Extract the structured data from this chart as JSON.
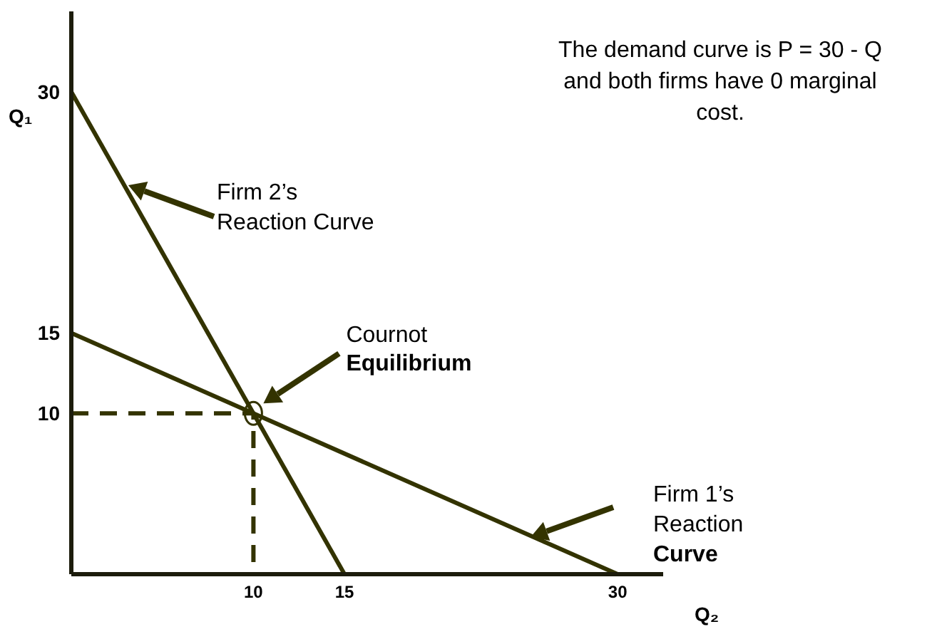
{
  "chart_data": {
    "type": "line",
    "xlabel": "Q₂",
    "ylabel": "Q₁",
    "xlim": [
      0,
      32.5
    ],
    "ylim": [
      0,
      35
    ],
    "xticks": [
      10,
      15,
      30
    ],
    "yticks": [
      10,
      15,
      30
    ],
    "marker": "none",
    "series": [
      {
        "color": "#333300",
        "x": [
          0,
          15
        ],
        "values": [
          30,
          0
        ],
        "line_style": "solid"
      },
      {
        "color": "#333300",
        "x": [
          0,
          30
        ],
        "values": [
          15,
          0
        ],
        "line_style": "solid"
      },
      {
        "color": "#333300",
        "x": [
          0,
          10,
          10
        ],
        "values": [
          10,
          10,
          0
        ],
        "line_style": "dashed"
      }
    ],
    "annotations": [
      "Firm 2’s Reaction Curve",
      "Firm 1’s Reaction Curve",
      "Cournot Equilibrium",
      "The demand curve is P = 30 - Q and both firms have 0 marginal cost."
    ]
  }
}
